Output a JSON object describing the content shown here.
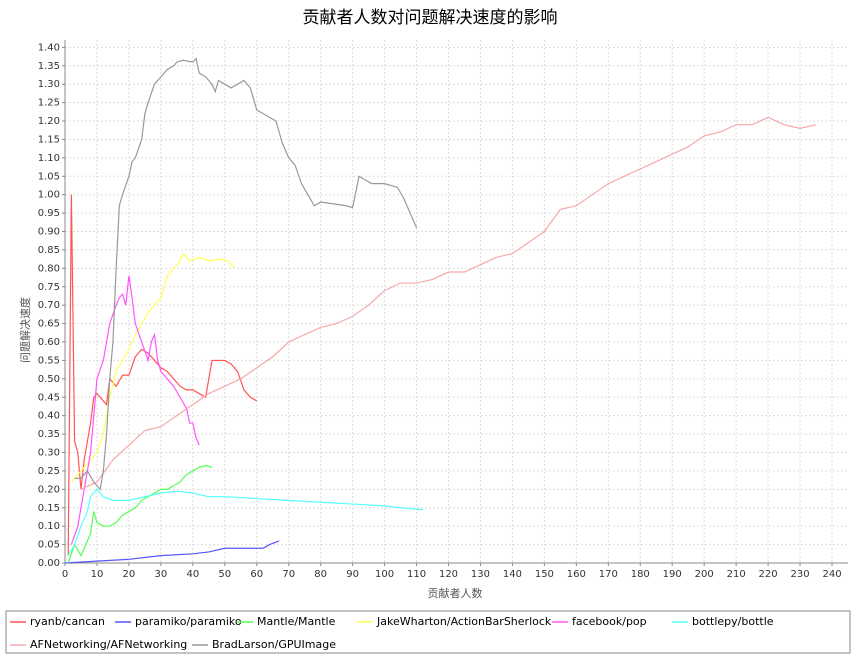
{
  "chart_data": {
    "type": "line",
    "title": "贡献者人数对问题解决速度的影响",
    "xlabel": "贡献者人数",
    "ylabel": "问题解决速度",
    "xlim": [
      0,
      245
    ],
    "ylim": [
      0,
      1.42
    ],
    "xticks": [
      0,
      10,
      20,
      30,
      40,
      50,
      60,
      70,
      80,
      90,
      100,
      110,
      120,
      130,
      140,
      150,
      160,
      170,
      180,
      190,
      200,
      210,
      220,
      230,
      240
    ],
    "yticks": [
      {
        "value": 0,
        "label": "0.00"
      },
      {
        "value": 0.05,
        "label": "0.05"
      },
      {
        "value": 0.1,
        "label": "0.10"
      },
      {
        "value": 0.15,
        "label": "0.15"
      },
      {
        "value": 0.2,
        "label": "0.20"
      },
      {
        "value": 0.25,
        "label": "0.25"
      },
      {
        "value": 0.3,
        "label": "0.30"
      },
      {
        "value": 0.35,
        "label": "0.35"
      },
      {
        "value": 0.4,
        "label": "0.40"
      },
      {
        "value": 0.45,
        "label": "0.45"
      },
      {
        "value": 0.5,
        "label": "0.50"
      },
      {
        "value": 0.55,
        "label": "0.55"
      },
      {
        "value": 0.6,
        "label": "0.60"
      },
      {
        "value": 0.65,
        "label": "0.65"
      },
      {
        "value": 0.7,
        "label": "0.70"
      },
      {
        "value": 0.75,
        "label": "0.75"
      },
      {
        "value": 0.8,
        "label": "0.80"
      },
      {
        "value": 0.85,
        "label": "0.85"
      },
      {
        "value": 0.9,
        "label": "0.90"
      },
      {
        "value": 0.95,
        "label": "0.95"
      },
      {
        "value": 1,
        "label": "1.00"
      },
      {
        "value": 1.05,
        "label": "1.05"
      },
      {
        "value": 1.1,
        "label": "1.10"
      },
      {
        "value": 1.15,
        "label": "1.15"
      },
      {
        "value": 1.2,
        "label": "1.20"
      },
      {
        "value": 1.25,
        "label": "1.25"
      },
      {
        "value": 1.3,
        "label": "1.30"
      },
      {
        "value": 1.35,
        "label": "1.35"
      },
      {
        "value": 1.4,
        "label": "1.40"
      }
    ],
    "grid": true,
    "legend": "bottom",
    "series": [
      {
        "name": "ryanb/cancan",
        "color": "#ff5555",
        "x": [
          1,
          2,
          3,
          4,
          5,
          6,
          7,
          8,
          9,
          10,
          12,
          13,
          14,
          16,
          18,
          20,
          22,
          24,
          26,
          28,
          30,
          32,
          34,
          36,
          38,
          40,
          42,
          44,
          46,
          48,
          50,
          52,
          54,
          56,
          58,
          60
        ],
        "values": [
          0.02,
          1.0,
          0.33,
          0.3,
          0.2,
          0.28,
          0.33,
          0.38,
          0.45,
          0.46,
          0.44,
          0.43,
          0.5,
          0.48,
          0.51,
          0.51,
          0.56,
          0.58,
          0.57,
          0.55,
          0.53,
          0.52,
          0.5,
          0.48,
          0.47,
          0.47,
          0.46,
          0.45,
          0.55,
          0.55,
          0.55,
          0.54,
          0.52,
          0.47,
          0.45,
          0.44
        ]
      },
      {
        "name": "paramiko/paramiko",
        "color": "#5555ff",
        "x": [
          0,
          10,
          20,
          30,
          40,
          45,
          50,
          60,
          62,
          64,
          67
        ],
        "values": [
          0,
          0.005,
          0.01,
          0.02,
          0.025,
          0.03,
          0.04,
          0.04,
          0.04,
          0.05,
          0.06
        ]
      },
      {
        "name": "Mantle/Mantle",
        "color": "#55ff55",
        "x": [
          1,
          3,
          5,
          8,
          9,
          10,
          12,
          14,
          16,
          18,
          20,
          22,
          24,
          26,
          28,
          30,
          32,
          34,
          36,
          38,
          40,
          42,
          44,
          46
        ],
        "values": [
          0,
          0.05,
          0.02,
          0.08,
          0.14,
          0.11,
          0.1,
          0.1,
          0.11,
          0.13,
          0.14,
          0.15,
          0.17,
          0.18,
          0.19,
          0.2,
          0.2,
          0.21,
          0.22,
          0.24,
          0.25,
          0.26,
          0.265,
          0.26
        ]
      },
      {
        "name": "JakeWharton/ActionBarSherlock",
        "color": "#ffff55",
        "x": [
          2,
          5,
          8,
          10,
          12,
          14,
          16,
          18,
          20,
          22,
          24,
          26,
          28,
          30,
          32,
          34,
          36,
          37,
          39,
          42,
          45,
          48,
          51,
          53
        ],
        "values": [
          0.22,
          0.25,
          0.28,
          0.3,
          0.35,
          0.45,
          0.52,
          0.55,
          0.58,
          0.62,
          0.65,
          0.68,
          0.7,
          0.72,
          0.78,
          0.8,
          0.82,
          0.84,
          0.82,
          0.83,
          0.82,
          0.825,
          0.82,
          0.8
        ]
      },
      {
        "name": "facebook/pop",
        "color": "#ff55ff",
        "x": [
          2,
          4,
          6,
          8,
          9,
          10,
          12,
          14,
          16,
          17,
          18,
          19,
          20,
          21,
          22,
          24,
          26,
          27,
          28,
          29,
          30,
          32,
          34,
          36,
          38,
          39,
          40,
          41,
          42
        ],
        "values": [
          0.05,
          0.1,
          0.2,
          0.3,
          0.4,
          0.5,
          0.55,
          0.65,
          0.7,
          0.72,
          0.73,
          0.7,
          0.78,
          0.72,
          0.65,
          0.6,
          0.55,
          0.6,
          0.62,
          0.55,
          0.52,
          0.5,
          0.48,
          0.45,
          0.42,
          0.38,
          0.38,
          0.34,
          0.32
        ]
      },
      {
        "name": "bottlepy/bottle",
        "color": "#55ffff",
        "x": [
          1,
          3,
          5,
          7,
          8,
          9,
          10,
          12,
          15,
          20,
          25,
          30,
          35,
          40,
          45,
          50,
          60,
          70,
          80,
          90,
          100,
          105,
          112
        ],
        "values": [
          0.02,
          0.05,
          0.1,
          0.14,
          0.18,
          0.19,
          0.2,
          0.18,
          0.17,
          0.17,
          0.18,
          0.19,
          0.195,
          0.19,
          0.18,
          0.18,
          0.175,
          0.17,
          0.165,
          0.16,
          0.155,
          0.15,
          0.145
        ]
      },
      {
        "name": "AFNetworking/AFNetworking",
        "color": "#f8a8a8",
        "x": [
          5,
          10,
          15,
          20,
          25,
          30,
          35,
          40,
          45,
          50,
          55,
          60,
          65,
          70,
          75,
          80,
          85,
          90,
          95,
          100,
          105,
          110,
          115,
          120,
          125,
          130,
          135,
          140,
          145,
          150,
          155,
          160,
          165,
          170,
          175,
          180,
          185,
          190,
          195,
          200,
          205,
          210,
          215,
          220,
          225,
          230,
          235
        ],
        "values": [
          0.2,
          0.22,
          0.28,
          0.32,
          0.36,
          0.37,
          0.4,
          0.43,
          0.46,
          0.48,
          0.5,
          0.53,
          0.56,
          0.6,
          0.62,
          0.64,
          0.65,
          0.67,
          0.7,
          0.74,
          0.76,
          0.76,
          0.77,
          0.79,
          0.79,
          0.81,
          0.83,
          0.84,
          0.87,
          0.9,
          0.96,
          0.97,
          1.0,
          1.03,
          1.05,
          1.07,
          1.09,
          1.11,
          1.13,
          1.16,
          1.17,
          1.19,
          1.19,
          1.21,
          1.19,
          1.18,
          1.19
        ]
      },
      {
        "name": "BradLarson/GPUImage",
        "color": "#999999",
        "x": [
          3,
          5,
          7,
          9,
          11,
          12,
          13,
          14,
          15,
          16,
          17,
          18,
          20,
          21,
          22,
          24,
          25,
          26,
          28,
          30,
          32,
          34,
          35,
          37,
          40,
          41,
          42,
          44,
          46,
          47,
          48,
          50,
          52,
          54,
          56,
          58,
          60,
          62,
          64,
          66,
          68,
          70,
          72,
          74,
          76,
          78,
          80,
          84,
          88,
          90,
          92,
          94,
          96,
          100,
          104,
          106,
          108,
          110
        ],
        "values": [
          0.23,
          0.23,
          0.25,
          0.22,
          0.2,
          0.25,
          0.35,
          0.5,
          0.6,
          0.8,
          0.97,
          1.0,
          1.05,
          1.09,
          1.1,
          1.15,
          1.22,
          1.25,
          1.3,
          1.32,
          1.34,
          1.35,
          1.36,
          1.365,
          1.36,
          1.37,
          1.33,
          1.32,
          1.3,
          1.28,
          1.31,
          1.3,
          1.29,
          1.3,
          1.31,
          1.29,
          1.23,
          1.22,
          1.21,
          1.2,
          1.14,
          1.1,
          1.08,
          1.03,
          1.0,
          0.97,
          0.98,
          0.975,
          0.97,
          0.965,
          1.05,
          1.04,
          1.03,
          1.03,
          1.02,
          0.99,
          0.95,
          0.91
        ]
      }
    ]
  }
}
